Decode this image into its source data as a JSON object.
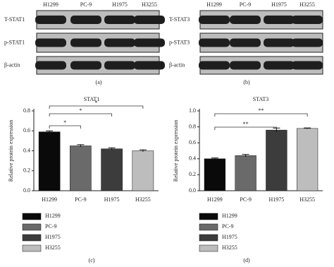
{
  "blots": [
    {
      "panel_label": "(a)",
      "lanes": [
        "H1299",
        "PC-9",
        "H1975",
        "H3255"
      ],
      "rows": [
        "T-STAT1",
        "p-STAT1",
        "β-actin"
      ]
    },
    {
      "panel_label": "(b)",
      "lanes": [
        "H1299",
        "PC-9",
        "H1975",
        "H3255"
      ],
      "rows": [
        "T-STAT3",
        "p-STAT3",
        "β-actin"
      ]
    }
  ],
  "chart_data": [
    {
      "type": "bar",
      "title": "STAT1",
      "panel_label": "(c)",
      "y_label": "Relative protein expression",
      "categories": [
        "H1299",
        "PC-9",
        "H1975",
        "H3255"
      ],
      "values": [
        0.59,
        0.45,
        0.42,
        0.4
      ],
      "errors": [
        0.01,
        0.012,
        0.01,
        0.01
      ],
      "colors": [
        "#0a0a0a",
        "#6a6a6a",
        "#3c3c3c",
        "#bdbdbd"
      ],
      "ylim": [
        0,
        0.8
      ],
      "yticks": [
        {
          "value": 0,
          "label": "0.0"
        },
        0.2,
        0.4,
        0.6,
        0.8
      ],
      "annotations": [
        "*",
        "*",
        "*"
      ]
    },
    {
      "type": "bar",
      "title": "STAT3",
      "panel_label": "(d)",
      "y_label": "Relative protein expression",
      "categories": [
        "H1299",
        "PC-9",
        "H1975",
        "H3255"
      ],
      "values": [
        0.4,
        0.44,
        0.76,
        0.78
      ],
      "errors": [
        0.01,
        0.015,
        0.025,
        0.006
      ],
      "colors": [
        "#0a0a0a",
        "#6a6a6a",
        "#3c3c3c",
        "#bdbdbd"
      ],
      "ylim": [
        0,
        1
      ],
      "yticks": [
        {
          "value": 0,
          "label": "0.0"
        },
        0.2,
        0.4,
        0.6,
        0.8,
        {
          "value": 1,
          "label": "1.0"
        }
      ],
      "annotations": [
        "**",
        "**"
      ]
    }
  ]
}
